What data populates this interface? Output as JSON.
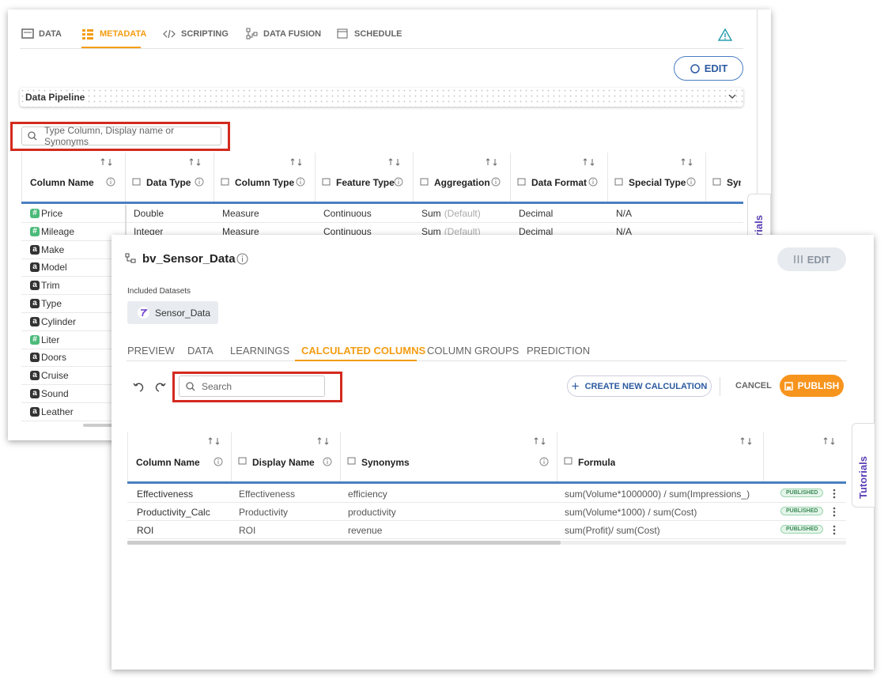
{
  "back_panel": {
    "tabs": [
      "DATA",
      "METADATA",
      "SCRIPTING",
      "DATA FUSION",
      "SCHEDULE"
    ],
    "edit_button": "EDIT",
    "pipeline_label": "Data Pipeline",
    "search_placeholder": "Type Column, Display name or Synonyms",
    "side_tab": "Tutorials",
    "table": {
      "headers": [
        "Column Name",
        "Data Type",
        "Column Type",
        "Feature Type",
        "Aggregation",
        "Data Format",
        "Special Type",
        "Syn"
      ],
      "rows": [
        {
          "icon": "#",
          "name": "Price",
          "cells": [
            "Double",
            "Measure",
            "Continuous",
            "Sum",
            "Decimal",
            "N/A"
          ],
          "aggregation_note": "(Default)"
        },
        {
          "icon": "#",
          "name": "Mileage",
          "cells": [
            "Integer",
            "Measure",
            "Continuous",
            "Sum",
            "Decimal",
            "N/A"
          ],
          "aggregation_note": "(Default)"
        },
        {
          "icon": "a",
          "name": "Make"
        },
        {
          "icon": "a",
          "name": "Model"
        },
        {
          "icon": "a",
          "name": "Trim"
        },
        {
          "icon": "a",
          "name": "Type"
        },
        {
          "icon": "a",
          "name": "Cylinder"
        },
        {
          "icon": "#",
          "name": "Liter"
        },
        {
          "icon": "a",
          "name": "Doors"
        },
        {
          "icon": "a",
          "name": "Cruise"
        },
        {
          "icon": "a",
          "name": "Sound"
        },
        {
          "icon": "a",
          "name": "Leather"
        }
      ]
    }
  },
  "front_panel": {
    "title": "bv_Sensor_Data",
    "edit_button": "EDIT",
    "included_label": "Included Datasets",
    "dataset": "Sensor_Data",
    "tabs": [
      "PREVIEW",
      "DATA",
      "LEARNINGS",
      "CALCULATED COLUMNS",
      "COLUMN GROUPS",
      "PREDICTION"
    ],
    "search_placeholder": "Search",
    "create_button": "CREATE NEW CALCULATION",
    "cancel_button": "CANCEL",
    "publish_button": "PUBLISH",
    "side_tab": "Tutorials",
    "table": {
      "headers": [
        "Column Name",
        "Display Name",
        "Synonyms",
        "Formula"
      ],
      "rows": [
        {
          "column_name": "Effectiveness",
          "display_name": "Effectiveness",
          "synonyms": "efficiency",
          "formula": "sum(Volume*1000000) / sum(Impressions_)",
          "status": "PUBLISHED"
        },
        {
          "column_name": "Productivity_Calc",
          "display_name": "Productivity",
          "synonyms": "productivity",
          "formula": "sum(Volume*1000) / sum(Cost)",
          "status": "PUBLISHED"
        },
        {
          "column_name": "ROI",
          "display_name": "ROI",
          "synonyms": "revenue",
          "formula": "sum(Profit)/ sum(Cost)",
          "status": "PUBLISHED"
        }
      ]
    }
  }
}
